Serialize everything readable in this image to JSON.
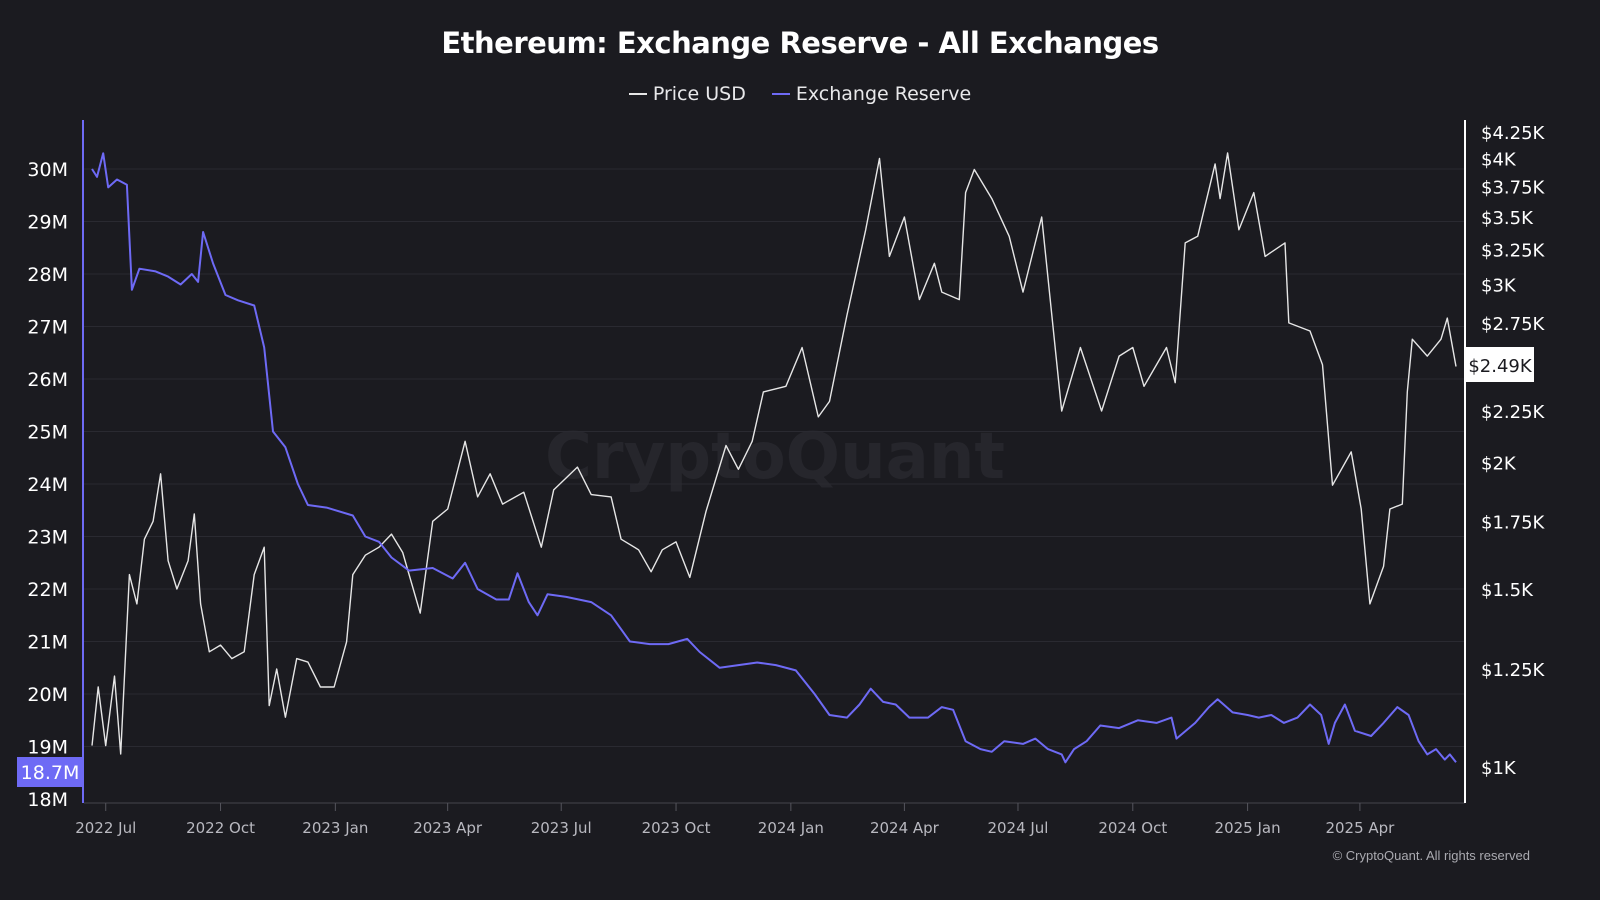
{
  "chart_data": {
    "type": "line",
    "title": "Ethereum: Exchange Reserve - All Exchanges",
    "legend_position": "top",
    "grid": true,
    "watermark": "CryptoQuant",
    "copyright": "© CryptoQuant. All rights reserved",
    "x_range": [
      "2022-06-20",
      "2025-06-17"
    ],
    "x_ticks": [
      {
        "date": "2022-07-01",
        "label": "2022 Jul"
      },
      {
        "date": "2022-10-01",
        "label": "2022 Oct"
      },
      {
        "date": "2023-01-01",
        "label": "2023 Jan"
      },
      {
        "date": "2023-04-01",
        "label": "2023 Apr"
      },
      {
        "date": "2023-07-01",
        "label": "2023 Jul"
      },
      {
        "date": "2023-10-01",
        "label": "2023 Oct"
      },
      {
        "date": "2024-01-01",
        "label": "2024 Jan"
      },
      {
        "date": "2024-04-01",
        "label": "2024 Apr"
      },
      {
        "date": "2024-07-01",
        "label": "2024 Jul"
      },
      {
        "date": "2024-10-01",
        "label": "2024 Oct"
      },
      {
        "date": "2025-01-01",
        "label": "2025 Jan"
      },
      {
        "date": "2025-04-01",
        "label": "2025 Apr"
      }
    ],
    "left_axis": {
      "unit": "M",
      "scale": "linear",
      "range": [
        18,
        31
      ],
      "ticks": [
        {
          "value": 18,
          "label": "18M"
        },
        {
          "value": 19,
          "label": "19M"
        },
        {
          "value": 20,
          "label": "20M"
        },
        {
          "value": 21,
          "label": "21M"
        },
        {
          "value": 22,
          "label": "22M"
        },
        {
          "value": 23,
          "label": "23M"
        },
        {
          "value": 24,
          "label": "24M"
        },
        {
          "value": 25,
          "label": "25M"
        },
        {
          "value": 26,
          "label": "26M"
        },
        {
          "value": 27,
          "label": "27M"
        },
        {
          "value": 28,
          "label": "28M"
        },
        {
          "value": 29,
          "label": "29M"
        },
        {
          "value": 30,
          "label": "30M"
        }
      ],
      "current_label": "18.7M",
      "color": "#6e6af5"
    },
    "right_axis": {
      "unit": "USD",
      "scale": "log",
      "range": [
        920,
        4400
      ],
      "ticks": [
        {
          "value": 1000,
          "label": "$1K"
        },
        {
          "value": 1250,
          "label": "$1.25K"
        },
        {
          "value": 1500,
          "label": "$1.5K"
        },
        {
          "value": 1750,
          "label": "$1.75K"
        },
        {
          "value": 2000,
          "label": "$2K"
        },
        {
          "value": 2250,
          "label": "$2.25K"
        },
        {
          "value": 2750,
          "label": "$2.75K"
        },
        {
          "value": 3000,
          "label": "$3K"
        },
        {
          "value": 3250,
          "label": "$3.25K"
        },
        {
          "value": 3500,
          "label": "$3.5K"
        },
        {
          "value": 3750,
          "label": "$3.75K"
        },
        {
          "value": 4000,
          "label": "$4K"
        },
        {
          "value": 4250,
          "label": "$4.25K"
        }
      ],
      "current_label": "$2.49K",
      "color": "#ffffff"
    },
    "series": [
      {
        "name": "Price USD",
        "axis": "right",
        "color": "#e6e6e6",
        "points": [
          [
            "2022-06-20",
            1050
          ],
          [
            "2022-06-25",
            1200
          ],
          [
            "2022-07-01",
            1050
          ],
          [
            "2022-07-08",
            1230
          ],
          [
            "2022-07-13",
            1030
          ],
          [
            "2022-07-20",
            1550
          ],
          [
            "2022-07-26",
            1450
          ],
          [
            "2022-08-01",
            1680
          ],
          [
            "2022-08-08",
            1750
          ],
          [
            "2022-08-14",
            1950
          ],
          [
            "2022-08-20",
            1600
          ],
          [
            "2022-08-27",
            1500
          ],
          [
            "2022-09-05",
            1600
          ],
          [
            "2022-09-10",
            1780
          ],
          [
            "2022-09-15",
            1450
          ],
          [
            "2022-09-22",
            1300
          ],
          [
            "2022-10-01",
            1320
          ],
          [
            "2022-10-10",
            1280
          ],
          [
            "2022-10-20",
            1300
          ],
          [
            "2022-10-28",
            1550
          ],
          [
            "2022-11-05",
            1650
          ],
          [
            "2022-11-09",
            1150
          ],
          [
            "2022-11-15",
            1250
          ],
          [
            "2022-11-22",
            1120
          ],
          [
            "2022-12-01",
            1280
          ],
          [
            "2022-12-10",
            1270
          ],
          [
            "2022-12-20",
            1200
          ],
          [
            "2022-12-31",
            1200
          ],
          [
            "2023-01-10",
            1330
          ],
          [
            "2023-01-15",
            1550
          ],
          [
            "2023-01-25",
            1620
          ],
          [
            "2023-02-05",
            1650
          ],
          [
            "2023-02-15",
            1700
          ],
          [
            "2023-02-24",
            1630
          ],
          [
            "2023-03-10",
            1420
          ],
          [
            "2023-03-20",
            1750
          ],
          [
            "2023-04-01",
            1800
          ],
          [
            "2023-04-15",
            2100
          ],
          [
            "2023-04-25",
            1850
          ],
          [
            "2023-05-05",
            1950
          ],
          [
            "2023-05-15",
            1820
          ],
          [
            "2023-06-01",
            1870
          ],
          [
            "2023-06-15",
            1650
          ],
          [
            "2023-06-25",
            1880
          ],
          [
            "2023-07-14",
            1980
          ],
          [
            "2023-07-25",
            1860
          ],
          [
            "2023-08-10",
            1850
          ],
          [
            "2023-08-18",
            1680
          ],
          [
            "2023-09-01",
            1640
          ],
          [
            "2023-09-11",
            1560
          ],
          [
            "2023-09-20",
            1640
          ],
          [
            "2023-10-01",
            1670
          ],
          [
            "2023-10-12",
            1540
          ],
          [
            "2023-10-25",
            1790
          ],
          [
            "2023-11-10",
            2080
          ],
          [
            "2023-11-20",
            1970
          ],
          [
            "2023-12-01",
            2100
          ],
          [
            "2023-12-10",
            2350
          ],
          [
            "2023-12-28",
            2380
          ],
          [
            "2024-01-10",
            2600
          ],
          [
            "2024-01-23",
            2220
          ],
          [
            "2024-02-01",
            2300
          ],
          [
            "2024-02-15",
            2800
          ],
          [
            "2024-03-01",
            3400
          ],
          [
            "2024-03-12",
            4000
          ],
          [
            "2024-03-20",
            3200
          ],
          [
            "2024-04-01",
            3500
          ],
          [
            "2024-04-13",
            2900
          ],
          [
            "2024-04-25",
            3150
          ],
          [
            "2024-05-01",
            2950
          ],
          [
            "2024-05-15",
            2900
          ],
          [
            "2024-05-20",
            3700
          ],
          [
            "2024-05-27",
            3900
          ],
          [
            "2024-06-10",
            3650
          ],
          [
            "2024-06-24",
            3350
          ],
          [
            "2024-07-05",
            2950
          ],
          [
            "2024-07-20",
            3500
          ],
          [
            "2024-08-05",
            2250
          ],
          [
            "2024-08-20",
            2600
          ],
          [
            "2024-09-06",
            2250
          ],
          [
            "2024-09-20",
            2550
          ],
          [
            "2024-10-01",
            2600
          ],
          [
            "2024-10-10",
            2380
          ],
          [
            "2024-10-28",
            2600
          ],
          [
            "2024-11-04",
            2400
          ],
          [
            "2024-11-12",
            3300
          ],
          [
            "2024-11-22",
            3350
          ],
          [
            "2024-12-06",
            3950
          ],
          [
            "2024-12-10",
            3650
          ],
          [
            "2024-12-16",
            4050
          ],
          [
            "2024-12-25",
            3400
          ],
          [
            "2025-01-06",
            3700
          ],
          [
            "2025-01-15",
            3200
          ],
          [
            "2025-01-31",
            3300
          ],
          [
            "2025-02-03",
            2750
          ],
          [
            "2025-02-20",
            2700
          ],
          [
            "2025-03-02",
            2500
          ],
          [
            "2025-03-10",
            1900
          ],
          [
            "2025-03-25",
            2050
          ],
          [
            "2025-04-02",
            1800
          ],
          [
            "2025-04-09",
            1450
          ],
          [
            "2025-04-20",
            1580
          ],
          [
            "2025-04-25",
            1800
          ],
          [
            "2025-05-05",
            1820
          ],
          [
            "2025-05-09",
            2350
          ],
          [
            "2025-05-13",
            2650
          ],
          [
            "2025-05-25",
            2550
          ],
          [
            "2025-06-05",
            2650
          ],
          [
            "2025-06-10",
            2780
          ],
          [
            "2025-06-17",
            2490
          ]
        ]
      },
      {
        "name": "Exchange Reserve",
        "axis": "left",
        "color": "#6e6af5",
        "points": [
          [
            "2022-06-20",
            30.0
          ],
          [
            "2022-06-24",
            29.85
          ],
          [
            "2022-06-29",
            30.3
          ],
          [
            "2022-07-03",
            29.65
          ],
          [
            "2022-07-10",
            29.8
          ],
          [
            "2022-07-18",
            29.7
          ],
          [
            "2022-07-22",
            27.7
          ],
          [
            "2022-07-28",
            28.1
          ],
          [
            "2022-08-10",
            28.05
          ],
          [
            "2022-08-20",
            27.95
          ],
          [
            "2022-08-30",
            27.8
          ],
          [
            "2022-09-08",
            28.0
          ],
          [
            "2022-09-13",
            27.85
          ],
          [
            "2022-09-17",
            28.8
          ],
          [
            "2022-09-25",
            28.2
          ],
          [
            "2022-10-05",
            27.6
          ],
          [
            "2022-10-15",
            27.5
          ],
          [
            "2022-10-28",
            27.4
          ],
          [
            "2022-11-05",
            26.6
          ],
          [
            "2022-11-12",
            25.0
          ],
          [
            "2022-11-22",
            24.7
          ],
          [
            "2022-12-02",
            24.0
          ],
          [
            "2022-12-10",
            23.6
          ],
          [
            "2022-12-25",
            23.55
          ],
          [
            "2023-01-15",
            23.4
          ],
          [
            "2023-01-25",
            23.0
          ],
          [
            "2023-02-05",
            22.9
          ],
          [
            "2023-02-15",
            22.6
          ],
          [
            "2023-03-01",
            22.35
          ],
          [
            "2023-03-20",
            22.4
          ],
          [
            "2023-04-05",
            22.2
          ],
          [
            "2023-04-15",
            22.5
          ],
          [
            "2023-04-25",
            22.0
          ],
          [
            "2023-05-10",
            21.8
          ],
          [
            "2023-05-20",
            21.8
          ],
          [
            "2023-05-27",
            22.3
          ],
          [
            "2023-06-05",
            21.75
          ],
          [
            "2023-06-12",
            21.5
          ],
          [
            "2023-06-20",
            21.9
          ],
          [
            "2023-07-05",
            21.85
          ],
          [
            "2023-07-25",
            21.75
          ],
          [
            "2023-08-10",
            21.5
          ],
          [
            "2023-08-25",
            21.0
          ],
          [
            "2023-09-10",
            20.95
          ],
          [
            "2023-09-25",
            20.95
          ],
          [
            "2023-10-10",
            21.05
          ],
          [
            "2023-10-20",
            20.8
          ],
          [
            "2023-11-05",
            20.5
          ],
          [
            "2023-11-20",
            20.55
          ],
          [
            "2023-12-05",
            20.6
          ],
          [
            "2023-12-20",
            20.55
          ],
          [
            "2024-01-05",
            20.45
          ],
          [
            "2024-01-20",
            20.0
          ],
          [
            "2024-02-01",
            19.6
          ],
          [
            "2024-02-15",
            19.55
          ],
          [
            "2024-02-25",
            19.8
          ],
          [
            "2024-03-05",
            20.1
          ],
          [
            "2024-03-15",
            19.85
          ],
          [
            "2024-03-25",
            19.8
          ],
          [
            "2024-04-05",
            19.55
          ],
          [
            "2024-04-20",
            19.55
          ],
          [
            "2024-05-01",
            19.75
          ],
          [
            "2024-05-10",
            19.7
          ],
          [
            "2024-05-20",
            19.1
          ],
          [
            "2024-06-01",
            18.95
          ],
          [
            "2024-06-10",
            18.9
          ],
          [
            "2024-06-20",
            19.1
          ],
          [
            "2024-07-05",
            19.05
          ],
          [
            "2024-07-15",
            19.15
          ],
          [
            "2024-07-25",
            18.95
          ],
          [
            "2024-08-05",
            18.85
          ],
          [
            "2024-08-08",
            18.7
          ],
          [
            "2024-08-15",
            18.95
          ],
          [
            "2024-08-25",
            19.1
          ],
          [
            "2024-09-05",
            19.4
          ],
          [
            "2024-09-20",
            19.35
          ],
          [
            "2024-10-05",
            19.5
          ],
          [
            "2024-10-20",
            19.45
          ],
          [
            "2024-11-01",
            19.55
          ],
          [
            "2024-11-05",
            19.15
          ],
          [
            "2024-11-20",
            19.45
          ],
          [
            "2024-12-01",
            19.75
          ],
          [
            "2024-12-08",
            19.9
          ],
          [
            "2024-12-20",
            19.65
          ],
          [
            "2025-01-01",
            19.6
          ],
          [
            "2025-01-10",
            19.55
          ],
          [
            "2025-01-20",
            19.6
          ],
          [
            "2025-01-30",
            19.45
          ],
          [
            "2025-02-10",
            19.55
          ],
          [
            "2025-02-20",
            19.8
          ],
          [
            "2025-03-01",
            19.6
          ],
          [
            "2025-03-07",
            19.05
          ],
          [
            "2025-03-12",
            19.45
          ],
          [
            "2025-03-20",
            19.8
          ],
          [
            "2025-03-28",
            19.3
          ],
          [
            "2025-04-10",
            19.2
          ],
          [
            "2025-04-20",
            19.45
          ],
          [
            "2025-05-01",
            19.75
          ],
          [
            "2025-05-10",
            19.6
          ],
          [
            "2025-05-18",
            19.1
          ],
          [
            "2025-05-25",
            18.85
          ],
          [
            "2025-06-01",
            18.95
          ],
          [
            "2025-06-08",
            18.75
          ],
          [
            "2025-06-12",
            18.85
          ],
          [
            "2025-06-17",
            18.7
          ]
        ]
      }
    ]
  }
}
